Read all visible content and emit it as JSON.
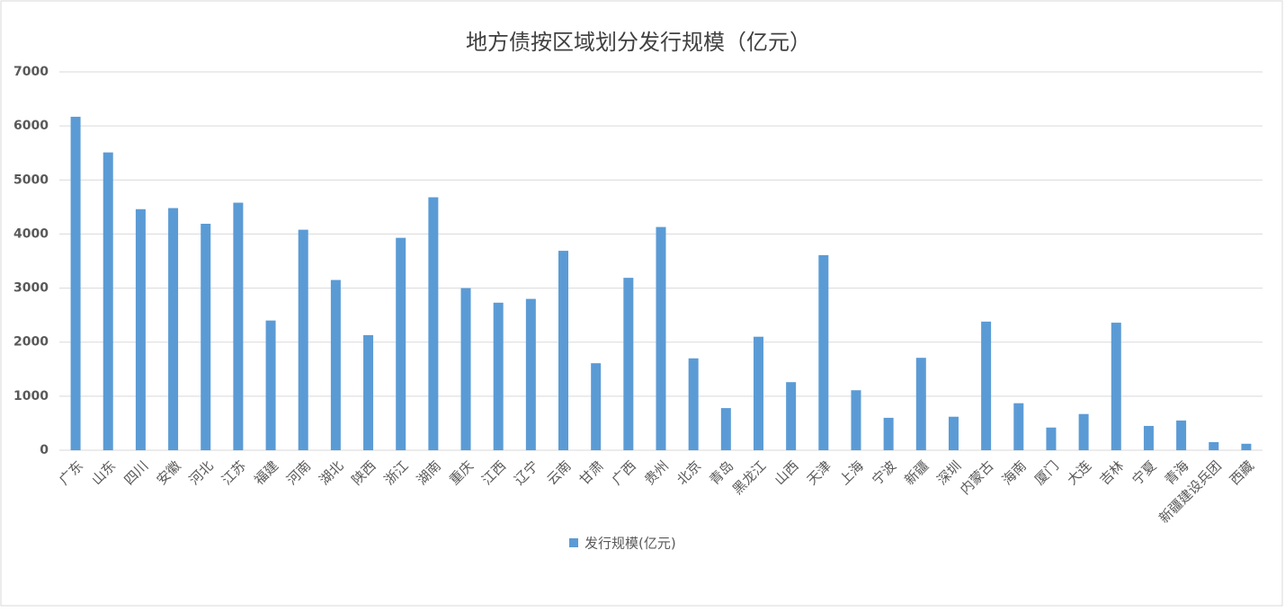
{
  "chart_data": {
    "type": "bar",
    "title": "地方债按区域划分发行规模（亿元）",
    "categories": [
      "广东",
      "山东",
      "四川",
      "安徽",
      "河北",
      "江苏",
      "福建",
      "河南",
      "湖北",
      "陕西",
      "浙江",
      "湖南",
      "重庆",
      "江西",
      "辽宁",
      "云南",
      "甘肃",
      "广西",
      "贵州",
      "北京",
      "青岛",
      "黑龙江",
      "山西",
      "天津",
      "上海",
      "宁波",
      "新疆",
      "深圳",
      "内蒙古",
      "海南",
      "厦门",
      "大连",
      "吉林",
      "宁夏",
      "青海",
      "新疆建设兵团",
      "西藏"
    ],
    "series": [
      {
        "name": "发行规模(亿元)",
        "color": "#5b9bd5",
        "values": [
          6170,
          5510,
          4460,
          4480,
          4190,
          4580,
          2400,
          4080,
          3150,
          2130,
          3930,
          4680,
          3000,
          2730,
          2800,
          3690,
          1610,
          3190,
          4130,
          1700,
          780,
          2100,
          1260,
          3610,
          1110,
          600,
          1710,
          620,
          2380,
          870,
          420,
          670,
          2360,
          450,
          550,
          150,
          120
        ]
      }
    ],
    "ylim": [
      0,
      7000
    ],
    "yticks": [
      0,
      1000,
      2000,
      3000,
      4000,
      5000,
      6000,
      7000
    ],
    "grid": true,
    "legend": "bottom"
  }
}
